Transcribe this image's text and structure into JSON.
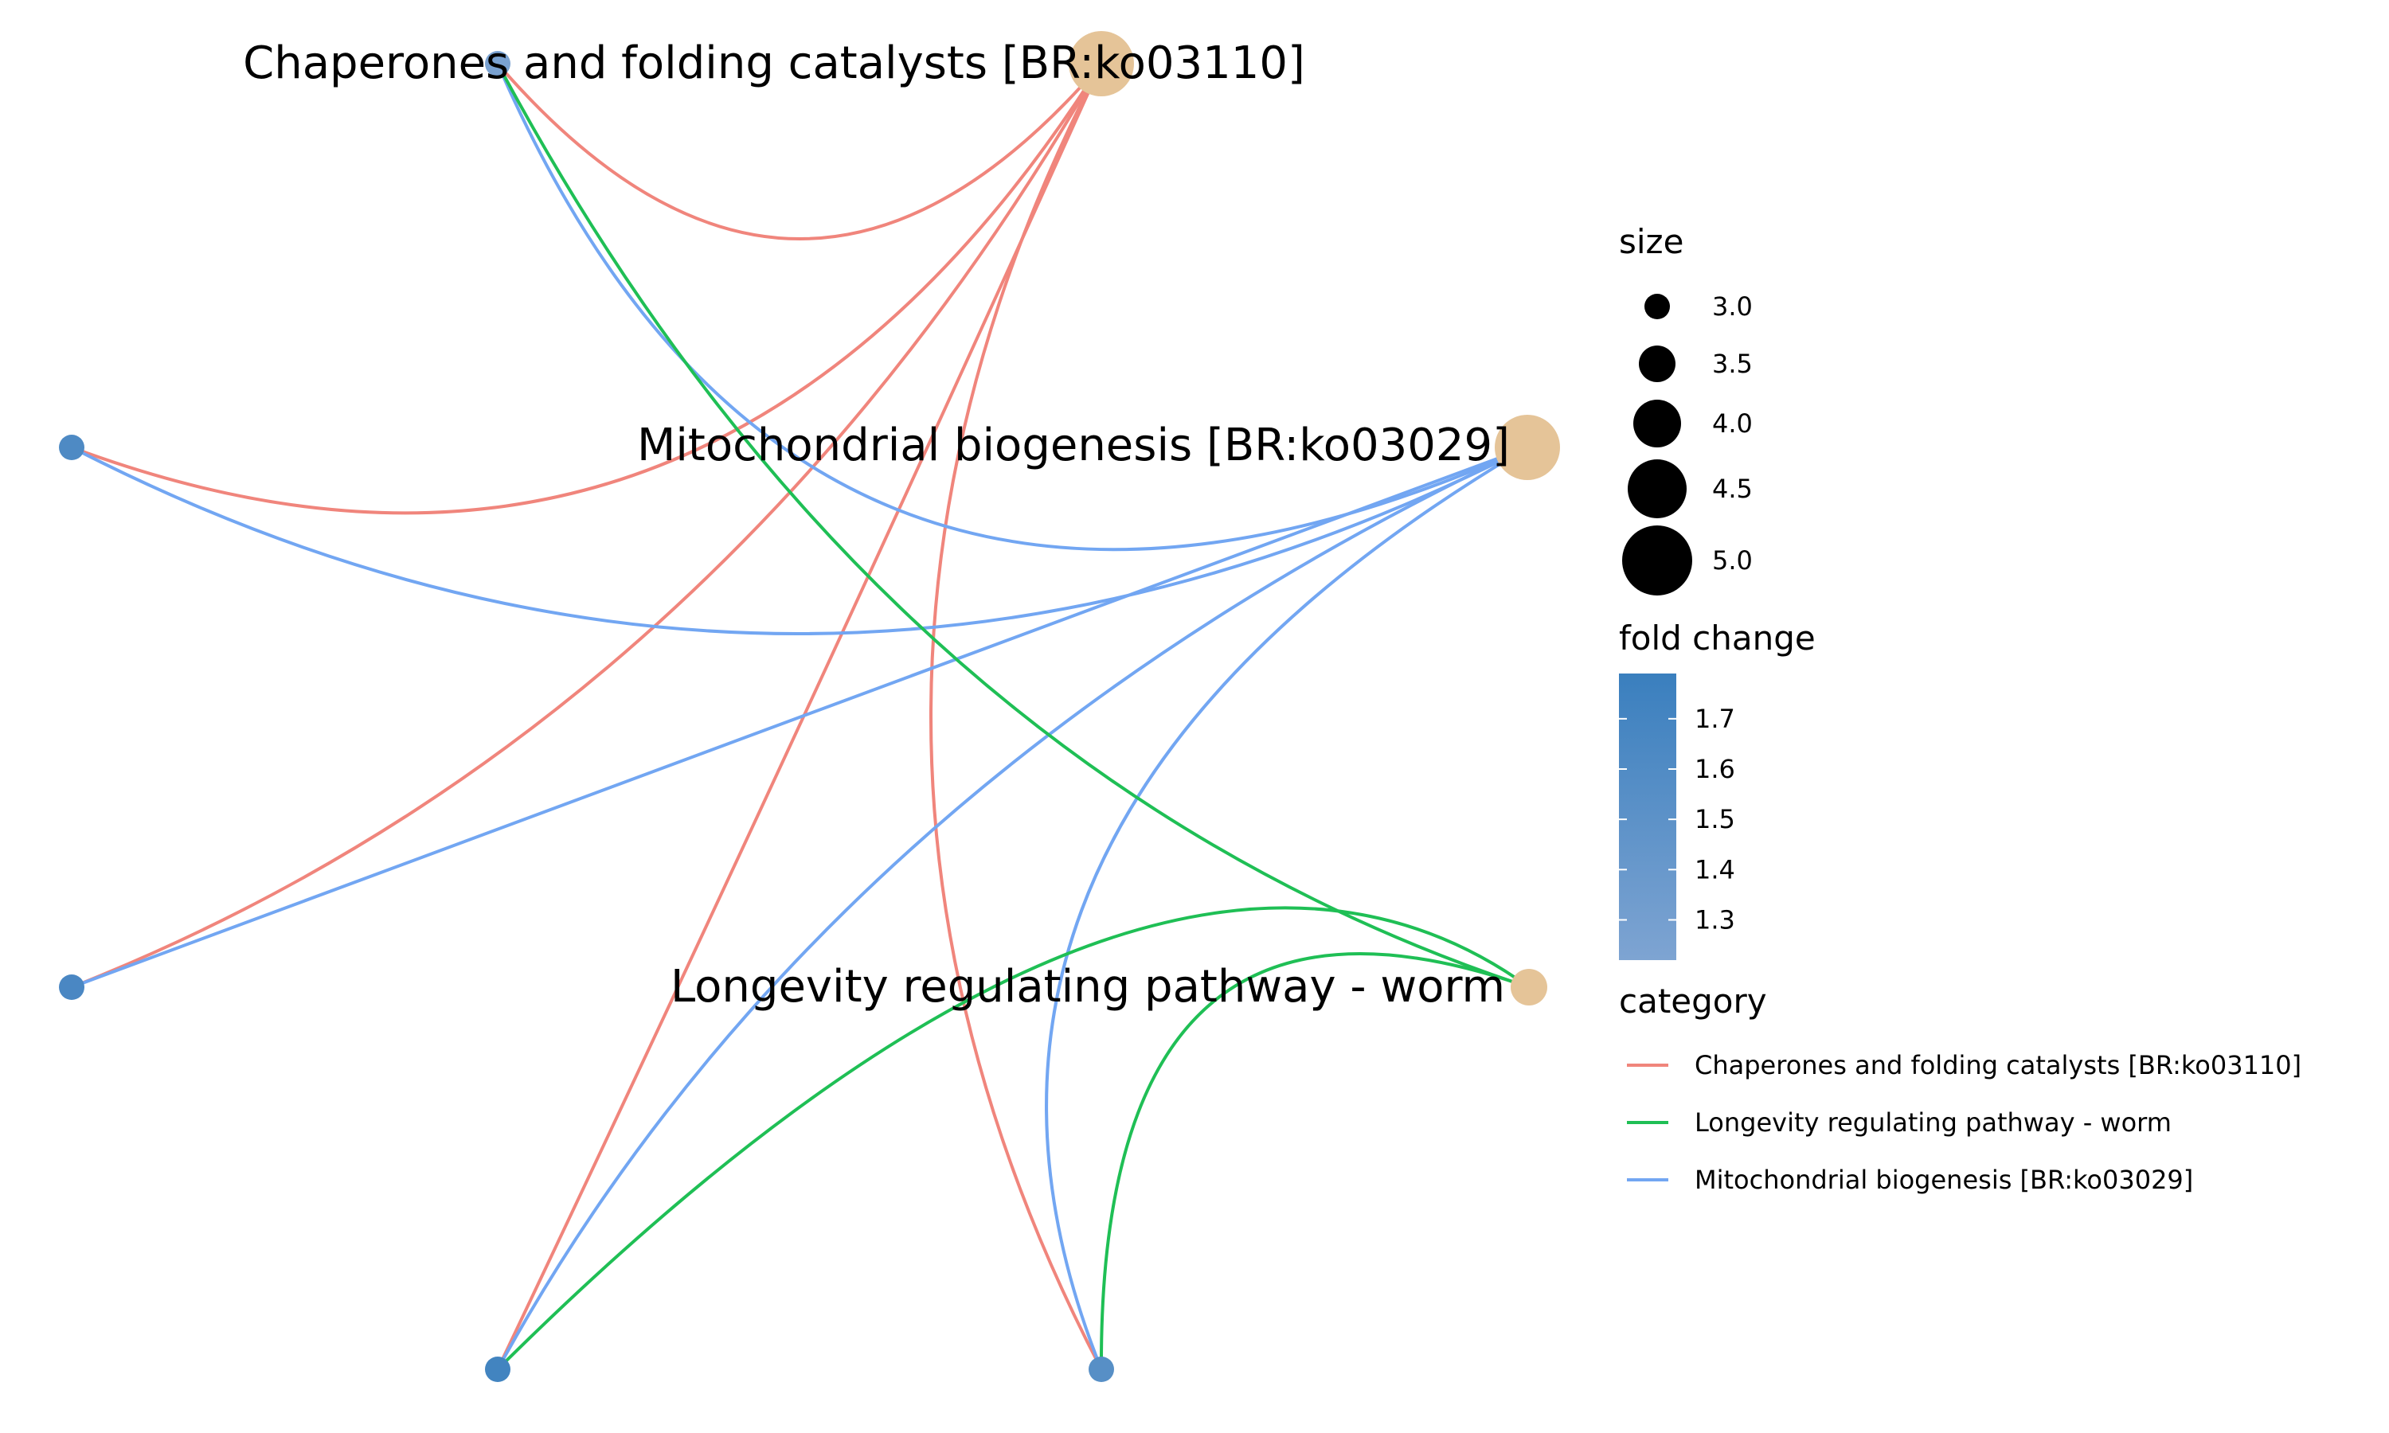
{
  "network": {
    "pathways": [
      {
        "id": "chap",
        "label": "Chaperones and folding catalysts [BR:ko03110]",
        "size": 5.0
      },
      {
        "id": "mito",
        "label": "Mitochondrial biogenesis [BR:ko03029]",
        "size": 5.0
      },
      {
        "id": "long",
        "label": "Longevity regulating pathway - worm",
        "size": 3.0
      }
    ],
    "genes": [
      {
        "id": "g_top",
        "fold_change": 1.25
      },
      {
        "id": "g_left_upper",
        "fold_change": 1.62
      },
      {
        "id": "g_left_lower",
        "fold_change": 1.66
      },
      {
        "id": "g_bottom_left",
        "fold_change": 1.72
      },
      {
        "id": "g_bottom_right",
        "fold_change": 1.55
      }
    ],
    "edges": [
      {
        "from": "chap",
        "to": "g_top",
        "category": "Chaperones and folding catalysts [BR:ko03110]"
      },
      {
        "from": "chap",
        "to": "g_left_upper",
        "category": "Chaperones and folding catalysts [BR:ko03110]"
      },
      {
        "from": "chap",
        "to": "g_left_lower",
        "category": "Chaperones and folding catalysts [BR:ko03110]"
      },
      {
        "from": "chap",
        "to": "g_bottom_left",
        "category": "Chaperones and folding catalysts [BR:ko03110]"
      },
      {
        "from": "chap",
        "to": "g_bottom_right",
        "category": "Chaperones and folding catalysts [BR:ko03110]"
      },
      {
        "from": "mito",
        "to": "g_top",
        "category": "Mitochondrial biogenesis [BR:ko03029]"
      },
      {
        "from": "mito",
        "to": "g_left_upper",
        "category": "Mitochondrial biogenesis [BR:ko03029]"
      },
      {
        "from": "mito",
        "to": "g_left_lower",
        "category": "Mitochondrial biogenesis [BR:ko03029]"
      },
      {
        "from": "mito",
        "to": "g_bottom_left",
        "category": "Mitochondrial biogenesis [BR:ko03029]"
      },
      {
        "from": "mito",
        "to": "g_bottom_right",
        "category": "Mitochondrial biogenesis [BR:ko03029]"
      },
      {
        "from": "long",
        "to": "g_top",
        "category": "Longevity regulating pathway - worm"
      },
      {
        "from": "long",
        "to": "g_bottom_left",
        "category": "Longevity regulating pathway - worm"
      },
      {
        "from": "long",
        "to": "g_bottom_right",
        "category": "Longevity regulating pathway - worm"
      }
    ]
  },
  "legend": {
    "size": {
      "title": "size",
      "entries": [
        {
          "value": 3.0,
          "label": "3.0"
        },
        {
          "value": 3.5,
          "label": "3.5"
        },
        {
          "value": 4.0,
          "label": "4.0"
        },
        {
          "value": 4.5,
          "label": "4.5"
        },
        {
          "value": 5.0,
          "label": "5.0"
        }
      ]
    },
    "fold_change": {
      "title": "fold change",
      "min": 1.22,
      "max": 1.79,
      "ticks": [
        {
          "value": 1.7,
          "label": "1.7"
        },
        {
          "value": 1.6,
          "label": "1.6"
        },
        {
          "value": 1.5,
          "label": "1.5"
        },
        {
          "value": 1.4,
          "label": "1.4"
        },
        {
          "value": 1.3,
          "label": "1.3"
        }
      ],
      "color_low": "#7ea4d2",
      "color_high": "#3a7fbe"
    },
    "category": {
      "title": "category",
      "entries": [
        {
          "label": "Chaperones and folding catalysts [BR:ko03110]",
          "color": "#f0857c"
        },
        {
          "label": "Longevity regulating pathway - worm",
          "color": "#1fbf55"
        },
        {
          "label": "Mitochondrial biogenesis [BR:ko03029]",
          "color": "#72a6f2"
        }
      ]
    }
  },
  "colors": {
    "pathway_node": "#e5c498"
  }
}
